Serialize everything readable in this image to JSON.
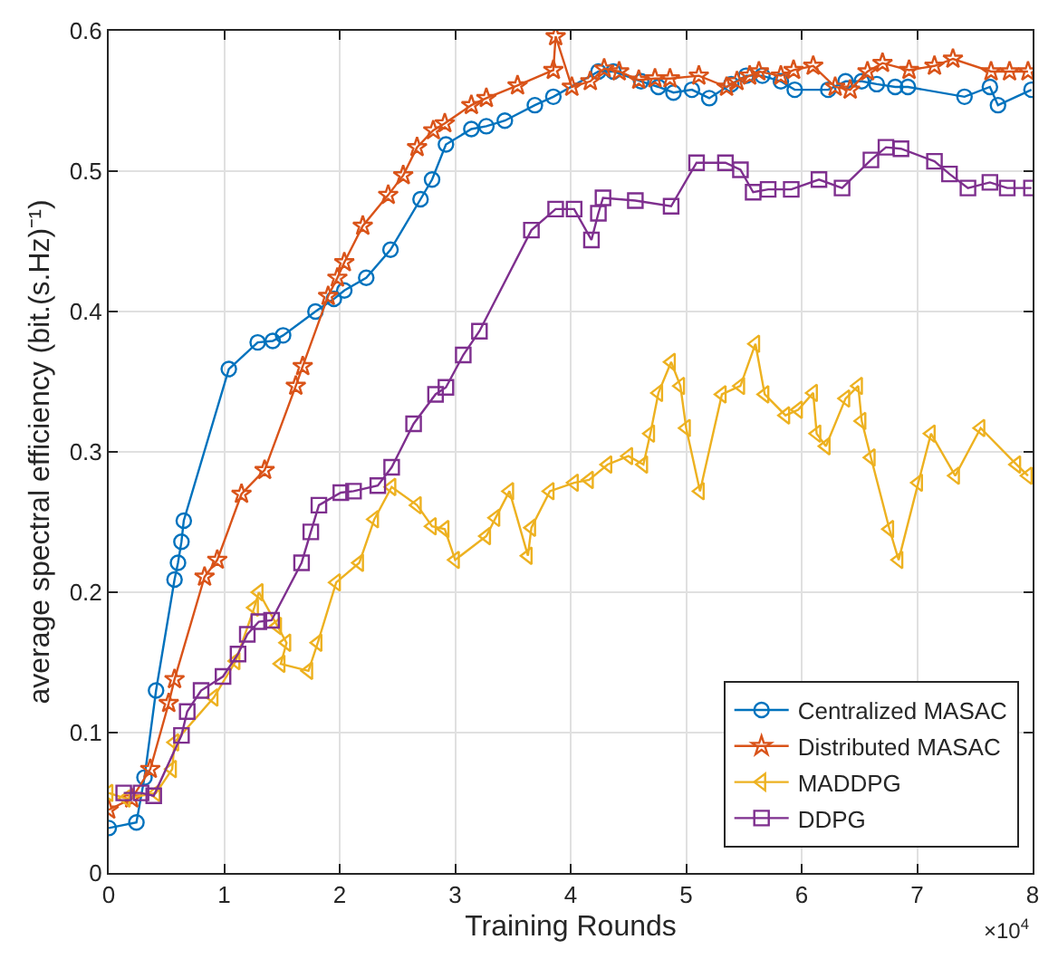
{
  "chart_data": {
    "type": "line",
    "xlabel": "Training Rounds",
    "ylabel": "average spectral efficiency (bit.(s.Hz)⁻¹)",
    "annotations": [
      "×10$^{4}$"
    ],
    "xlim": [
      0,
      8
    ],
    "xticks": [
      0,
      1,
      2,
      3,
      4,
      5,
      6,
      7,
      8
    ],
    "ylim": [
      0,
      0.6
    ],
    "yticks": [
      0,
      0.1,
      0.2,
      0.3,
      0.4,
      0.5,
      0.6
    ],
    "grid": true,
    "legend": "bottom right",
    "line_style": "solid",
    "series": [
      {
        "name": "Centralized MASAC",
        "color": "#0072bd",
        "marker": "circle",
        "x": [
          0,
          0.24,
          0.31,
          0.41,
          0.57,
          0.6,
          0.63,
          0.65,
          1.04,
          1.29,
          1.42,
          1.51,
          1.79,
          1.95,
          2.04,
          2.23,
          2.44,
          2.7,
          2.8,
          2.92,
          3.14,
          3.27,
          3.43,
          3.69,
          3.85,
          4.24,
          4.37,
          4.61,
          4.76,
          4.89,
          5.05,
          5.2,
          5.39,
          5.52,
          5.66,
          5.82,
          5.94,
          6.23,
          6.38,
          6.52,
          6.65,
          6.81,
          6.92,
          7.41,
          7.63,
          7.7,
          7.99
        ],
        "values": [
          0.032,
          0.036,
          0.068,
          0.13,
          0.209,
          0.221,
          0.236,
          0.251,
          0.359,
          0.378,
          0.379,
          0.383,
          0.4,
          0.409,
          0.415,
          0.424,
          0.444,
          0.48,
          0.494,
          0.519,
          0.53,
          0.532,
          0.536,
          0.547,
          0.553,
          0.571,
          0.571,
          0.564,
          0.56,
          0.556,
          0.558,
          0.552,
          0.562,
          0.568,
          0.568,
          0.564,
          0.558,
          0.558,
          0.564,
          0.564,
          0.562,
          0.56,
          0.56,
          0.553,
          0.56,
          0.547,
          0.558
        ]
      },
      {
        "name": "Distributed MASAC",
        "color": "#d95319",
        "marker": "star",
        "x": [
          0,
          0.2,
          0.36,
          0.52,
          0.57,
          0.83,
          0.94,
          1.15,
          1.35,
          1.62,
          1.68,
          1.9,
          1.98,
          2.04,
          2.2,
          2.42,
          2.55,
          2.67,
          2.81,
          2.91,
          3.14,
          3.27,
          3.54,
          3.85,
          3.87,
          4.01,
          4.17,
          4.29,
          4.42,
          4.59,
          4.73,
          4.86,
          5.11,
          5.35,
          5.44,
          5.55,
          5.63,
          5.82,
          5.93,
          6.1,
          6.29,
          6.42,
          6.57,
          6.7,
          6.93,
          7.15,
          7.31,
          7.64,
          7.8,
          7.96
        ],
        "values": [
          0.045,
          0.053,
          0.074,
          0.121,
          0.138,
          0.211,
          0.223,
          0.27,
          0.287,
          0.347,
          0.361,
          0.411,
          0.424,
          0.435,
          0.461,
          0.483,
          0.497,
          0.517,
          0.529,
          0.534,
          0.547,
          0.552,
          0.561,
          0.572,
          0.596,
          0.56,
          0.564,
          0.573,
          0.571,
          0.565,
          0.566,
          0.566,
          0.568,
          0.56,
          0.564,
          0.568,
          0.571,
          0.568,
          0.572,
          0.575,
          0.56,
          0.558,
          0.571,
          0.577,
          0.572,
          0.575,
          0.58,
          0.571,
          0.571,
          0.571
        ]
      },
      {
        "name": "MADDPG",
        "color": "#edb120",
        "marker": "triangle",
        "x": [
          0,
          0.15,
          0.41,
          0.55,
          0.57,
          0.91,
          1.1,
          1.26,
          1.3,
          1.46,
          1.54,
          1.49,
          1.73,
          1.81,
          1.97,
          2.17,
          2.3,
          2.45,
          2.67,
          2.8,
          2.91,
          3.0,
          3.27,
          3.35,
          3.47,
          3.63,
          3.66,
          3.82,
          4.03,
          4.16,
          4.32,
          4.5,
          4.63,
          4.69,
          4.76,
          4.87,
          4.95,
          5.0,
          5.12,
          5.31,
          5.47,
          5.6,
          5.68,
          5.86,
          5.97,
          6.1,
          6.13,
          6.21,
          6.38,
          6.49,
          6.52,
          6.6,
          6.76,
          6.84,
          7.01,
          7.12,
          7.33,
          7.55,
          7.86,
          7.96
        ],
        "values": [
          0.057,
          0.053,
          0.057,
          0.074,
          0.093,
          0.125,
          0.151,
          0.189,
          0.2,
          0.176,
          0.164,
          0.149,
          0.144,
          0.164,
          0.207,
          0.221,
          0.252,
          0.275,
          0.262,
          0.247,
          0.245,
          0.223,
          0.24,
          0.253,
          0.272,
          0.226,
          0.246,
          0.272,
          0.278,
          0.28,
          0.291,
          0.297,
          0.291,
          0.313,
          0.342,
          0.364,
          0.347,
          0.317,
          0.272,
          0.341,
          0.347,
          0.377,
          0.341,
          0.326,
          0.33,
          0.342,
          0.313,
          0.304,
          0.338,
          0.347,
          0.322,
          0.296,
          0.245,
          0.223,
          0.278,
          0.313,
          0.283,
          0.317,
          0.291,
          0.283
        ]
      },
      {
        "name": "DDPG",
        "color": "#7e2f8e",
        "marker": "square",
        "x": [
          0.13,
          0.28,
          0.39,
          0.63,
          0.68,
          0.8,
          0.99,
          1.12,
          1.2,
          1.3,
          1.41,
          1.67,
          1.75,
          1.82,
          2.01,
          2.12,
          2.33,
          2.45,
          2.64,
          2.83,
          2.92,
          3.07,
          3.21,
          3.66,
          3.87,
          4.03,
          4.18,
          4.24,
          4.28,
          4.56,
          4.87,
          5.09,
          5.34,
          5.47,
          5.58,
          5.71,
          5.91,
          6.15,
          6.35,
          6.6,
          6.73,
          6.86,
          7.15,
          7.28,
          7.44,
          7.63,
          7.78,
          7.99
        ],
        "values": [
          0.057,
          0.057,
          0.055,
          0.098,
          0.115,
          0.13,
          0.14,
          0.156,
          0.17,
          0.179,
          0.18,
          0.221,
          0.243,
          0.262,
          0.271,
          0.272,
          0.276,
          0.289,
          0.32,
          0.341,
          0.346,
          0.369,
          0.386,
          0.458,
          0.473,
          0.473,
          0.451,
          0.47,
          0.481,
          0.479,
          0.475,
          0.506,
          0.506,
          0.501,
          0.485,
          0.487,
          0.487,
          0.494,
          0.488,
          0.508,
          0.517,
          0.516,
          0.507,
          0.498,
          0.488,
          0.492,
          0.488,
          0.488
        ]
      }
    ]
  }
}
